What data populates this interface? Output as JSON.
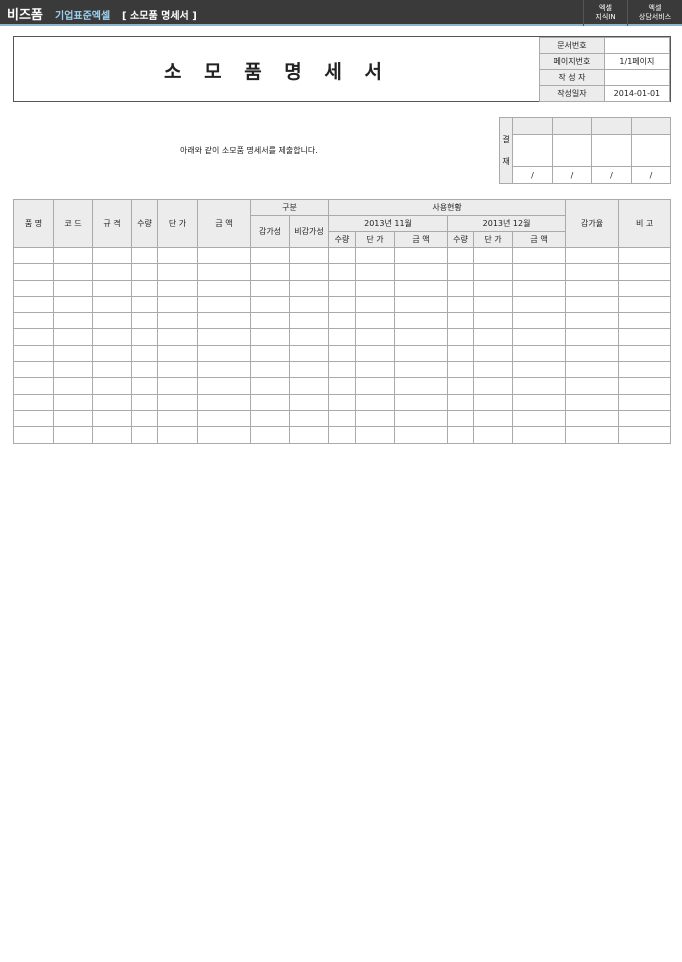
{
  "topbar": {
    "logo": "비즈폼",
    "brand": "기업표준엑셀",
    "doc_title": "[ 소모품 명세서 ]",
    "buttons": [
      {
        "line1": "엑셀",
        "line2": "지식IN"
      },
      {
        "line1": "엑셀",
        "line2": "상담서비스"
      }
    ]
  },
  "header": {
    "title": "소 모 품 명 세 서",
    "info": [
      {
        "label": "문서번호",
        "value": ""
      },
      {
        "label": "페이지번호",
        "value": "1/1페이지"
      },
      {
        "label": "작 성 자",
        "value": ""
      },
      {
        "label": "작성일자",
        "value": "2014-01-01"
      }
    ]
  },
  "message": "아래와 같이 소모품 명세서를 제출합니다.",
  "approval": {
    "label_top": "결",
    "label_bottom": "재",
    "slash": "/"
  },
  "table": {
    "h": {
      "name": "품 명",
      "code": "코 드",
      "spec": "규 격",
      "qty": "수량",
      "price": "단 가",
      "amount": "금 액",
      "category": "구분",
      "dep": "감가성",
      "nondep": "비감가성",
      "usage": "사용현황",
      "m1": "2013년 11월",
      "m2": "2013년 12월",
      "rate": "감가율",
      "note": "비 고"
    },
    "row_count": 12
  }
}
